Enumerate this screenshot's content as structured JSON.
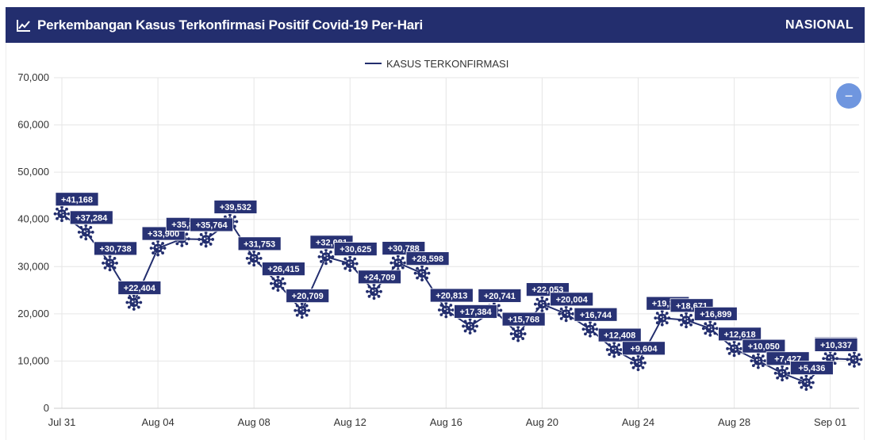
{
  "header": {
    "title": "Perkembangan Kasus Terkonfirmasi Positif Covid-19 Per-Hari",
    "region": "NASIONAL",
    "icon": "line-chart-icon"
  },
  "zoom_button": {
    "label": "−",
    "icon": "minus-icon"
  },
  "colors": {
    "header_bg": "#232e6e",
    "series": "#232e6e",
    "label_bg": "#283274",
    "zoom": "#6f96df",
    "grid": "#e6e6e6"
  },
  "chart_data": {
    "type": "line",
    "title": "",
    "xlabel": "",
    "ylabel": "",
    "ylim": [
      0,
      70000
    ],
    "yticks": [
      0,
      10000,
      20000,
      30000,
      40000,
      50000,
      60000,
      70000
    ],
    "ytick_labels": [
      "0",
      "10,000",
      "20,000",
      "30,000",
      "40,000",
      "50,000",
      "60,000",
      "70,000"
    ],
    "xticks": [
      "Jul 31",
      "Aug 04",
      "Aug 08",
      "Aug 12",
      "Aug 16",
      "Aug 20",
      "Aug 24",
      "Aug 28",
      "Sep 01"
    ],
    "grid": true,
    "legend_position": "top-center",
    "x": [
      "Jul 31",
      "Aug 01",
      "Aug 02",
      "Aug 03",
      "Aug 04",
      "Aug 05",
      "Aug 06",
      "Aug 07",
      "Aug 08",
      "Aug 09",
      "Aug 10",
      "Aug 11",
      "Aug 12",
      "Aug 13",
      "Aug 14",
      "Aug 15",
      "Aug 16",
      "Aug 17",
      "Aug 18",
      "Aug 19",
      "Aug 20",
      "Aug 21",
      "Aug 22",
      "Aug 23",
      "Aug 24",
      "Aug 25",
      "Aug 26",
      "Aug 27",
      "Aug 28",
      "Aug 29",
      "Aug 30",
      "Aug 31",
      "Sep 01",
      "Sep 02"
    ],
    "series": [
      {
        "name": "KASUS TERKONFIRMASI",
        "values": [
          41168,
          37284,
          30738,
          22404,
          33900,
          35867,
          35764,
          39532,
          31753,
          26415,
          20709,
          32081,
          30625,
          24709,
          30788,
          28598,
          20813,
          17384,
          20741,
          15768,
          22053,
          20004,
          16744,
          12408,
          9604,
          19106,
          18671,
          16899,
          12618,
          10050,
          7427,
          5436,
          10534,
          10337
        ],
        "labels": [
          "+41,168",
          "+37,284",
          "+30,738",
          "+22,404",
          "+33,900",
          "+35,867",
          "+35,764",
          "+39,532",
          "+31,753",
          "+26,415",
          "+20,709",
          "+32,081",
          "+30,625",
          "+24,709",
          "+30,788",
          "+28,598",
          "+20,813",
          "+17,384",
          "+20,741",
          "+15,768",
          "+22,053",
          "+20,004",
          "+16,744",
          "+12,408",
          "+9,604",
          "+19,106",
          "+18,671",
          "+16,899",
          "+12,618",
          "+10,050",
          "+7,427",
          "+5,436",
          "+10,534",
          "+10,337"
        ]
      }
    ]
  }
}
